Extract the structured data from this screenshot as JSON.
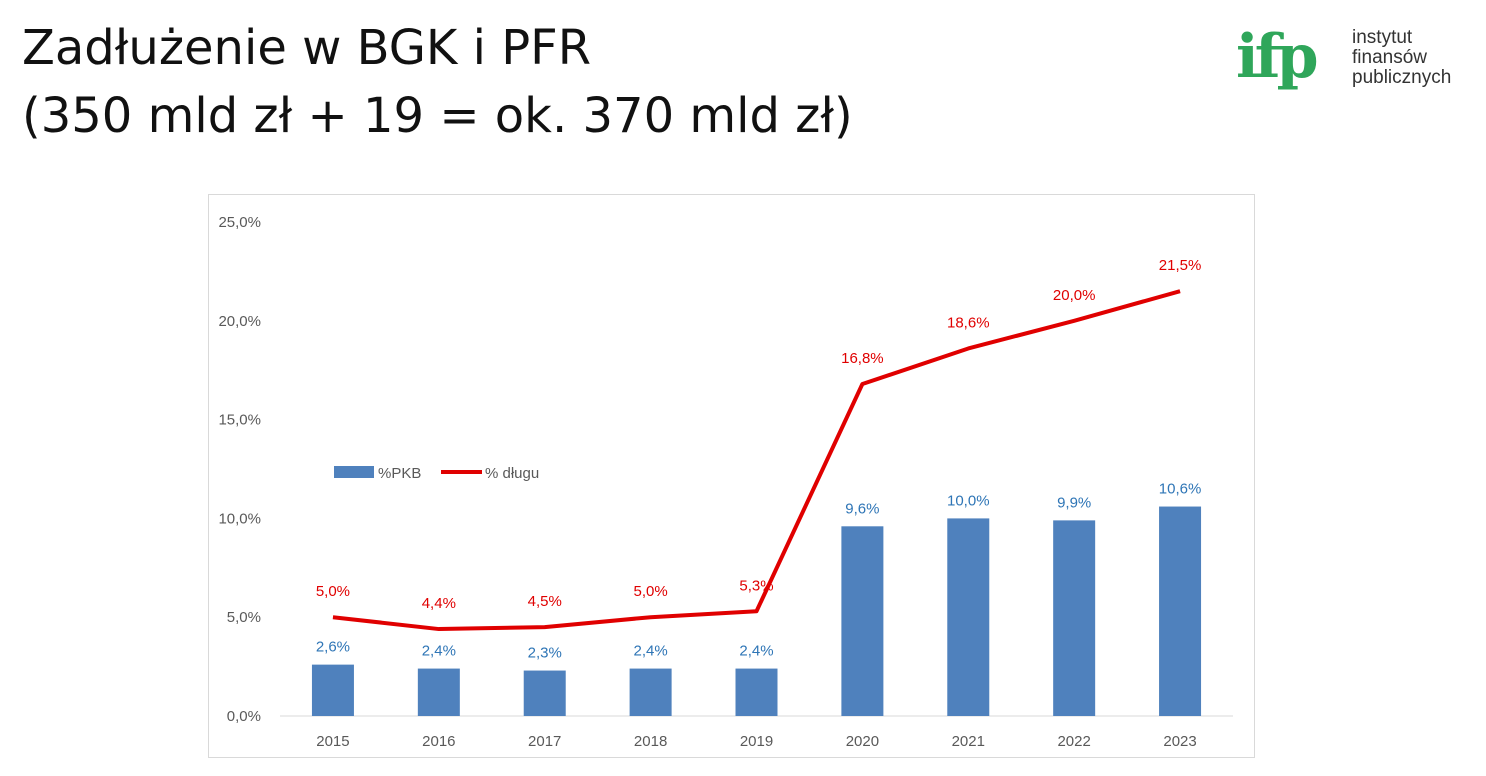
{
  "title": {
    "line1": "Zadłużenie w BGK i PFR",
    "line2": "(350 mld zł + 19 = ok. 370 mld zł)"
  },
  "logo": {
    "mark": "ifp",
    "line1": "instytut",
    "line2": "finansów",
    "line3": "publicznych"
  },
  "colors": {
    "bar": "#4f81bd",
    "line": "#e00000",
    "bar_label": "#2e75b6",
    "logo": "#2fa65a"
  },
  "chart_data": {
    "type": "bar",
    "categories": [
      "2015",
      "2016",
      "2017",
      "2018",
      "2019",
      "2020",
      "2021",
      "2022",
      "2023"
    ],
    "series": [
      {
        "name": "%PKB",
        "type": "bar",
        "values": [
          2.6,
          2.4,
          2.3,
          2.4,
          2.4,
          9.6,
          10.0,
          9.9,
          10.6
        ],
        "labels": [
          "2,6%",
          "2,4%",
          "2,3%",
          "2,4%",
          "2,4%",
          "9,6%",
          "10,0%",
          "9,9%",
          "10,6%"
        ]
      },
      {
        "name": "% długu",
        "type": "line",
        "values": [
          5.0,
          4.4,
          4.5,
          5.0,
          5.3,
          16.8,
          18.6,
          20.0,
          21.5
        ],
        "labels": [
          "5,0%",
          "4,4%",
          "4,5%",
          "5,0%",
          "5,3%",
          "16,8%",
          "18,6%",
          "20,0%",
          "21,5%"
        ]
      }
    ],
    "ylim": [
      0,
      25
    ],
    "yticks": [
      0,
      5,
      10,
      15,
      20,
      25
    ],
    "ytick_labels": [
      "0,0%",
      "5,0%",
      "10,0%",
      "15,0%",
      "20,0%",
      "25,0%"
    ],
    "legend_position": "middle-left",
    "grid": false
  }
}
